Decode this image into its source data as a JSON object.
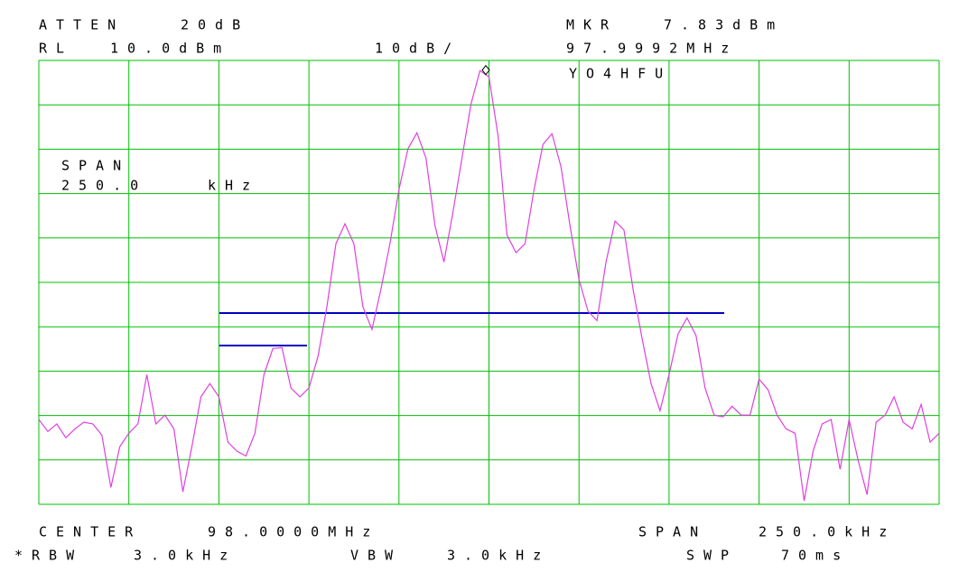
{
  "chart_data": {
    "type": "line",
    "header": {
      "atten_label": "ATTEN",
      "atten_value": "20dB",
      "rl_label": "RL",
      "rl_value": "10.0dBm",
      "scale": "10dB/",
      "marker_label": "MKR",
      "marker_value_label": "7.83dBm",
      "marker_freq": "97.9992MHz",
      "callsign": "YO4HFU",
      "span_label": "SPAN",
      "span_value": "250.0",
      "span_unit": "kHz"
    },
    "marker": {
      "value": 7.83
    },
    "footer": {
      "center_label": "CENTER",
      "center_value": "98.0000MHz",
      "span_label": "SPAN",
      "span_value": "250.0kHz",
      "rbw_label": "*RBW",
      "rbw_value": "3.0kHz",
      "vbw_label": "VBW",
      "vbw_value": "3.0kHz",
      "swp_label": "SWP",
      "swp_value": "70ms"
    },
    "categories": [
      null,
      null,
      null,
      null,
      null,
      null,
      null,
      null,
      null,
      null,
      null,
      null,
      null,
      null,
      null,
      null,
      null,
      null,
      null,
      null,
      null,
      null,
      null,
      null,
      null,
      null,
      null,
      null,
      null,
      null,
      null,
      null,
      null,
      null,
      null,
      null,
      null,
      null,
      null,
      null,
      null,
      null,
      null,
      null,
      null,
      null,
      null,
      null,
      null,
      null,
      null,
      null,
      null,
      null,
      null,
      null,
      null,
      null,
      null,
      null,
      null,
      null,
      null,
      null,
      null,
      null,
      null,
      null,
      null,
      null,
      null,
      null,
      null,
      null,
      null,
      null,
      null,
      null,
      null,
      null,
      null,
      null,
      null,
      null,
      null,
      null,
      null,
      null,
      null,
      null,
      null,
      null,
      null,
      null,
      null,
      null,
      null,
      null,
      null,
      null,
      null
    ],
    "series": [
      {
        "color": "#e040e0",
        "values": [
          -70.9,
          -73.6,
          -71.9,
          -75.0,
          -73.0,
          -71.5,
          -71.9,
          -74.4,
          -86.2,
          -77.0,
          -74.0,
          -71.9,
          -60.8,
          -71.9,
          -69.9,
          -73.0,
          -87.2,
          -77.0,
          -65.8,
          -62.8,
          -65.8,
          -76.0,
          -78.0,
          -79.1,
          -74.0,
          -60.8,
          -54.9,
          -54.7,
          -63.8,
          -65.8,
          -63.8,
          -56.7,
          -45.5,
          -31.3,
          -26.8,
          -31.3,
          -45.5,
          -50.6,
          -41.5,
          -31.3,
          -19.1,
          -9.9,
          -6.3,
          -12.0,
          -27.2,
          -35.4,
          -24.2,
          -12.0,
          0.2,
          7.7,
          6.3,
          -6.9,
          -29.3,
          -33.3,
          -31.3,
          -19.1,
          -8.9,
          -6.5,
          -14.0,
          -27.2,
          -39.4,
          -46.5,
          -48.6,
          -35.4,
          -26.2,
          -28.2,
          -41.5,
          -52.6,
          -62.8,
          -68.9,
          -60.8,
          -51.6,
          -48.0,
          -52.0,
          -63.8,
          -69.9,
          -70.3,
          -67.9,
          -69.9,
          -69.9,
          -61.8,
          -64.2,
          -69.9,
          -73.0,
          -74.0,
          -89.2,
          -78.0,
          -71.9,
          -70.9,
          -82.1,
          -70.9,
          -80.1,
          -87.8,
          -71.5,
          -69.9,
          -65.8,
          -71.5,
          -73.0,
          -67.5,
          -76.0,
          -74.0
        ]
      }
    ],
    "ylim": [
      -90,
      10
    ],
    "yticks": [
      -90,
      -80,
      -70,
      -60,
      -50,
      -40,
      -30,
      -20,
      -10,
      0,
      10
    ],
    "grid": true
  }
}
